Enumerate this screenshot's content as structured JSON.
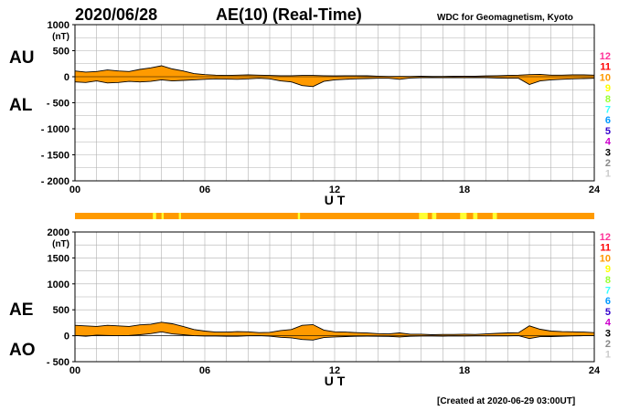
{
  "header": {
    "date": "2020/06/28",
    "title": "AE(10) (Real-Time)",
    "source": "WDC for Geomagnetism, Kyoto"
  },
  "footer": {
    "created": "[Created at 2020-06-29 03:00UT]"
  },
  "colors": {
    "fill": "#ff9a00",
    "line": "#000000",
    "grid": "#b0b0b0",
    "station_bar": "#ff9a00",
    "station_bar_low": "#ffff33"
  },
  "station_legend": [
    {
      "label": "12",
      "color": "#ff3399"
    },
    {
      "label": "11",
      "color": "#ff0000"
    },
    {
      "label": "10",
      "color": "#ff9900"
    },
    {
      "label": "9",
      "color": "#ffff00"
    },
    {
      "label": "8",
      "color": "#99ff33"
    },
    {
      "label": "7",
      "color": "#33ffff"
    },
    {
      "label": "6",
      "color": "#0099ff"
    },
    {
      "label": "5",
      "color": "#3300cc"
    },
    {
      "label": "4",
      "color": "#cc00cc"
    },
    {
      "label": "3",
      "color": "#000000"
    },
    {
      "label": "2",
      "color": "#888888"
    },
    {
      "label": "1",
      "color": "#cccccc"
    }
  ],
  "station_bar_segments": [
    {
      "from": 3.6,
      "to": 3.75,
      "level": "low"
    },
    {
      "from": 4.0,
      "to": 4.1,
      "level": "low"
    },
    {
      "from": 4.8,
      "to": 4.9,
      "level": "low"
    },
    {
      "from": 10.3,
      "to": 10.4,
      "level": "low"
    },
    {
      "from": 15.9,
      "to": 16.3,
      "level": "low"
    },
    {
      "from": 16.5,
      "to": 16.7,
      "level": "low"
    },
    {
      "from": 17.8,
      "to": 18.1,
      "level": "low"
    },
    {
      "from": 18.4,
      "to": 18.6,
      "level": "low"
    },
    {
      "from": 19.3,
      "to": 19.5,
      "level": "low"
    }
  ],
  "chart_data": [
    {
      "type": "area",
      "panel": "AU/AL",
      "labels_left": [
        "AU",
        "AL"
      ],
      "ylabel_unit": "(nT)",
      "xlabel": "U T",
      "xlim": [
        0,
        24
      ],
      "xticks": [
        0,
        6,
        12,
        18,
        24
      ],
      "xtick_labels": [
        "00",
        "06",
        "12",
        "18",
        "24"
      ],
      "ylim": [
        -2000,
        1000
      ],
      "yticks": [
        1000,
        500,
        0,
        -500,
        -1000,
        -1500,
        -2000
      ],
      "ytick_labels": [
        "1000",
        "500",
        "0",
        "- 500",
        "- 1000",
        "- 1500",
        "- 2000"
      ],
      "grid": true,
      "x": [
        0,
        0.5,
        1,
        1.5,
        2,
        2.5,
        3,
        3.5,
        4,
        4.5,
        5,
        5.5,
        6,
        6.5,
        7,
        7.5,
        8,
        8.5,
        9,
        9.5,
        10,
        10.5,
        11,
        11.5,
        12,
        12.5,
        13,
        13.5,
        14,
        14.5,
        15,
        15.5,
        16,
        16.5,
        17,
        17.5,
        18,
        18.5,
        19,
        19.5,
        20,
        20.5,
        21,
        21.5,
        22,
        22.5,
        23,
        23.5,
        24
      ],
      "series": [
        {
          "name": "AU",
          "values": [
            110,
            90,
            100,
            130,
            110,
            100,
            140,
            170,
            210,
            150,
            110,
            60,
            40,
            30,
            25,
            30,
            35,
            30,
            25,
            20,
            20,
            25,
            25,
            20,
            15,
            20,
            20,
            18,
            10,
            5,
            5,
            5,
            10,
            5,
            5,
            10,
            10,
            10,
            15,
            20,
            25,
            30,
            40,
            45,
            30,
            30,
            35,
            35,
            30
          ]
        },
        {
          "name": "AL",
          "values": [
            -100,
            -110,
            -80,
            -120,
            -110,
            -90,
            -100,
            -90,
            -60,
            -80,
            -70,
            -60,
            -50,
            -40,
            -45,
            -50,
            -40,
            -30,
            -40,
            -80,
            -100,
            -170,
            -190,
            -90,
            -60,
            -50,
            -40,
            -35,
            -30,
            -30,
            -50,
            -25,
            -20,
            -15,
            -20,
            -15,
            -20,
            -15,
            -20,
            -25,
            -30,
            -30,
            -150,
            -80,
            -60,
            -50,
            -40,
            -35,
            -30
          ]
        }
      ]
    },
    {
      "type": "area",
      "panel": "AE/AO",
      "labels_left": [
        "AE",
        "AO"
      ],
      "ylabel_unit": "(nT)",
      "xlabel": "U T",
      "xlim": [
        0,
        24
      ],
      "xticks": [
        0,
        6,
        12,
        18,
        24
      ],
      "xtick_labels": [
        "00",
        "06",
        "12",
        "18",
        "24"
      ],
      "ylim": [
        -500,
        2000
      ],
      "yticks": [
        2000,
        1500,
        1000,
        500,
        0,
        -500
      ],
      "ytick_labels": [
        "2000",
        "1500",
        "1000",
        "500",
        "0",
        "- 500"
      ],
      "grid": true,
      "x": [
        0,
        0.5,
        1,
        1.5,
        2,
        2.5,
        3,
        3.5,
        4,
        4.5,
        5,
        5.5,
        6,
        6.5,
        7,
        7.5,
        8,
        8.5,
        9,
        9.5,
        10,
        10.5,
        11,
        11.5,
        12,
        12.5,
        13,
        13.5,
        14,
        14.5,
        15,
        15.5,
        16,
        16.5,
        17,
        17.5,
        18,
        18.5,
        19,
        19.5,
        20,
        20.5,
        21,
        21.5,
        22,
        22.5,
        23,
        23.5,
        24
      ],
      "series": [
        {
          "name": "AE",
          "values": [
            200,
            190,
            180,
            200,
            190,
            180,
            210,
            220,
            260,
            230,
            180,
            120,
            90,
            70,
            70,
            80,
            75,
            60,
            65,
            100,
            120,
            200,
            215,
            110,
            75,
            70,
            60,
            53,
            40,
            35,
            55,
            30,
            30,
            20,
            25,
            25,
            30,
            25,
            35,
            45,
            55,
            60,
            190,
            125,
            90,
            80,
            75,
            70,
            60
          ]
        },
        {
          "name": "AO",
          "values": [
            5,
            -10,
            10,
            5,
            0,
            5,
            20,
            40,
            75,
            35,
            20,
            0,
            -5,
            -5,
            -10,
            -10,
            -2,
            0,
            -8,
            -30,
            -40,
            -73,
            -83,
            -35,
            -23,
            -15,
            -10,
            -9,
            -10,
            -13,
            -23,
            -10,
            -5,
            -5,
            -8,
            -3,
            -5,
            -3,
            -3,
            -3,
            -3,
            0,
            -55,
            -18,
            -15,
            -10,
            -3,
            0,
            0
          ]
        }
      ]
    }
  ]
}
